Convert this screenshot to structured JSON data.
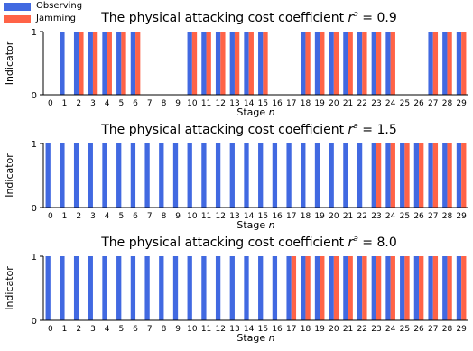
{
  "colors": {
    "observing": "#4169e1",
    "jamming": "#ff6347"
  },
  "legend": [
    {
      "key": "observing",
      "label": "Observing"
    },
    {
      "key": "jamming",
      "label": "Jamming"
    }
  ],
  "chart_data": [
    {
      "type": "bar",
      "title": "The physical attacking cost coefficient",
      "title_symbol": "r",
      "title_superscript": "a",
      "title_value": "= 0.9",
      "xlabel": "Stage",
      "xlabel_symbol": "n",
      "ylabel": "Indicator",
      "ylim": [
        0,
        1
      ],
      "yticks": [
        0,
        1
      ],
      "categories": [
        "0",
        "1",
        "2",
        "3",
        "4",
        "5",
        "6",
        "7",
        "8",
        "9",
        "10",
        "11",
        "12",
        "13",
        "14",
        "15",
        "16",
        "17",
        "18",
        "19",
        "20",
        "21",
        "22",
        "23",
        "24",
        "25",
        "26",
        "27",
        "28",
        "29"
      ],
      "series": [
        {
          "name": "Observing",
          "values": [
            0,
            1,
            1,
            1,
            1,
            1,
            1,
            0,
            0,
            0,
            1,
            1,
            1,
            1,
            1,
            1,
            0,
            0,
            1,
            1,
            1,
            1,
            1,
            1,
            1,
            0,
            0,
            1,
            1,
            1
          ]
        },
        {
          "name": "Jamming",
          "values": [
            0,
            0,
            1,
            1,
            1,
            1,
            1,
            0,
            0,
            0,
            1,
            1,
            1,
            1,
            1,
            1,
            0,
            0,
            1,
            1,
            1,
            1,
            1,
            1,
            1,
            0,
            0,
            1,
            1,
            1
          ]
        }
      ]
    },
    {
      "type": "bar",
      "title": "The physical attacking cost coefficient",
      "title_symbol": "r",
      "title_superscript": "a",
      "title_value": "= 1.5",
      "xlabel": "Stage",
      "xlabel_symbol": "n",
      "ylabel": "Indicator",
      "ylim": [
        0,
        1
      ],
      "yticks": [
        0,
        1
      ],
      "categories": [
        "0",
        "1",
        "2",
        "3",
        "4",
        "5",
        "6",
        "7",
        "8",
        "9",
        "10",
        "11",
        "12",
        "13",
        "14",
        "15",
        "16",
        "17",
        "18",
        "19",
        "20",
        "21",
        "22",
        "23",
        "24",
        "25",
        "26",
        "27",
        "28",
        "29"
      ],
      "series": [
        {
          "name": "Observing",
          "values": [
            1,
            1,
            1,
            1,
            1,
            1,
            1,
            1,
            1,
            1,
            1,
            1,
            1,
            1,
            1,
            1,
            1,
            1,
            1,
            1,
            1,
            1,
            1,
            1,
            1,
            1,
            1,
            1,
            1,
            1
          ]
        },
        {
          "name": "Jamming",
          "values": [
            0,
            0,
            0,
            0,
            0,
            0,
            0,
            0,
            0,
            0,
            0,
            0,
            0,
            0,
            0,
            0,
            0,
            0,
            0,
            0,
            0,
            0,
            0,
            1,
            1,
            1,
            1,
            1,
            1,
            1
          ]
        }
      ]
    },
    {
      "type": "bar",
      "title": "The physical attacking cost coefficient",
      "title_symbol": "r",
      "title_superscript": "a",
      "title_value": "= 8.0",
      "xlabel": "Stage",
      "xlabel_symbol": "n",
      "ylabel": "Indicator",
      "ylim": [
        0,
        1
      ],
      "yticks": [
        0,
        1
      ],
      "categories": [
        "0",
        "1",
        "2",
        "3",
        "4",
        "5",
        "6",
        "7",
        "8",
        "9",
        "10",
        "11",
        "12",
        "13",
        "14",
        "15",
        "16",
        "17",
        "18",
        "19",
        "20",
        "21",
        "22",
        "23",
        "24",
        "25",
        "26",
        "27",
        "28",
        "29"
      ],
      "series": [
        {
          "name": "Observing",
          "values": [
            1,
            1,
            1,
            1,
            1,
            1,
            1,
            1,
            1,
            1,
            1,
            1,
            1,
            1,
            1,
            1,
            1,
            1,
            1,
            1,
            1,
            1,
            1,
            1,
            1,
            1,
            1,
            1,
            1,
            1
          ]
        },
        {
          "name": "Jamming",
          "values": [
            0,
            0,
            0,
            0,
            0,
            0,
            0,
            0,
            0,
            0,
            0,
            0,
            0,
            0,
            0,
            0,
            0,
            1,
            1,
            1,
            1,
            1,
            1,
            1,
            1,
            1,
            1,
            1,
            1,
            1
          ]
        }
      ]
    }
  ]
}
